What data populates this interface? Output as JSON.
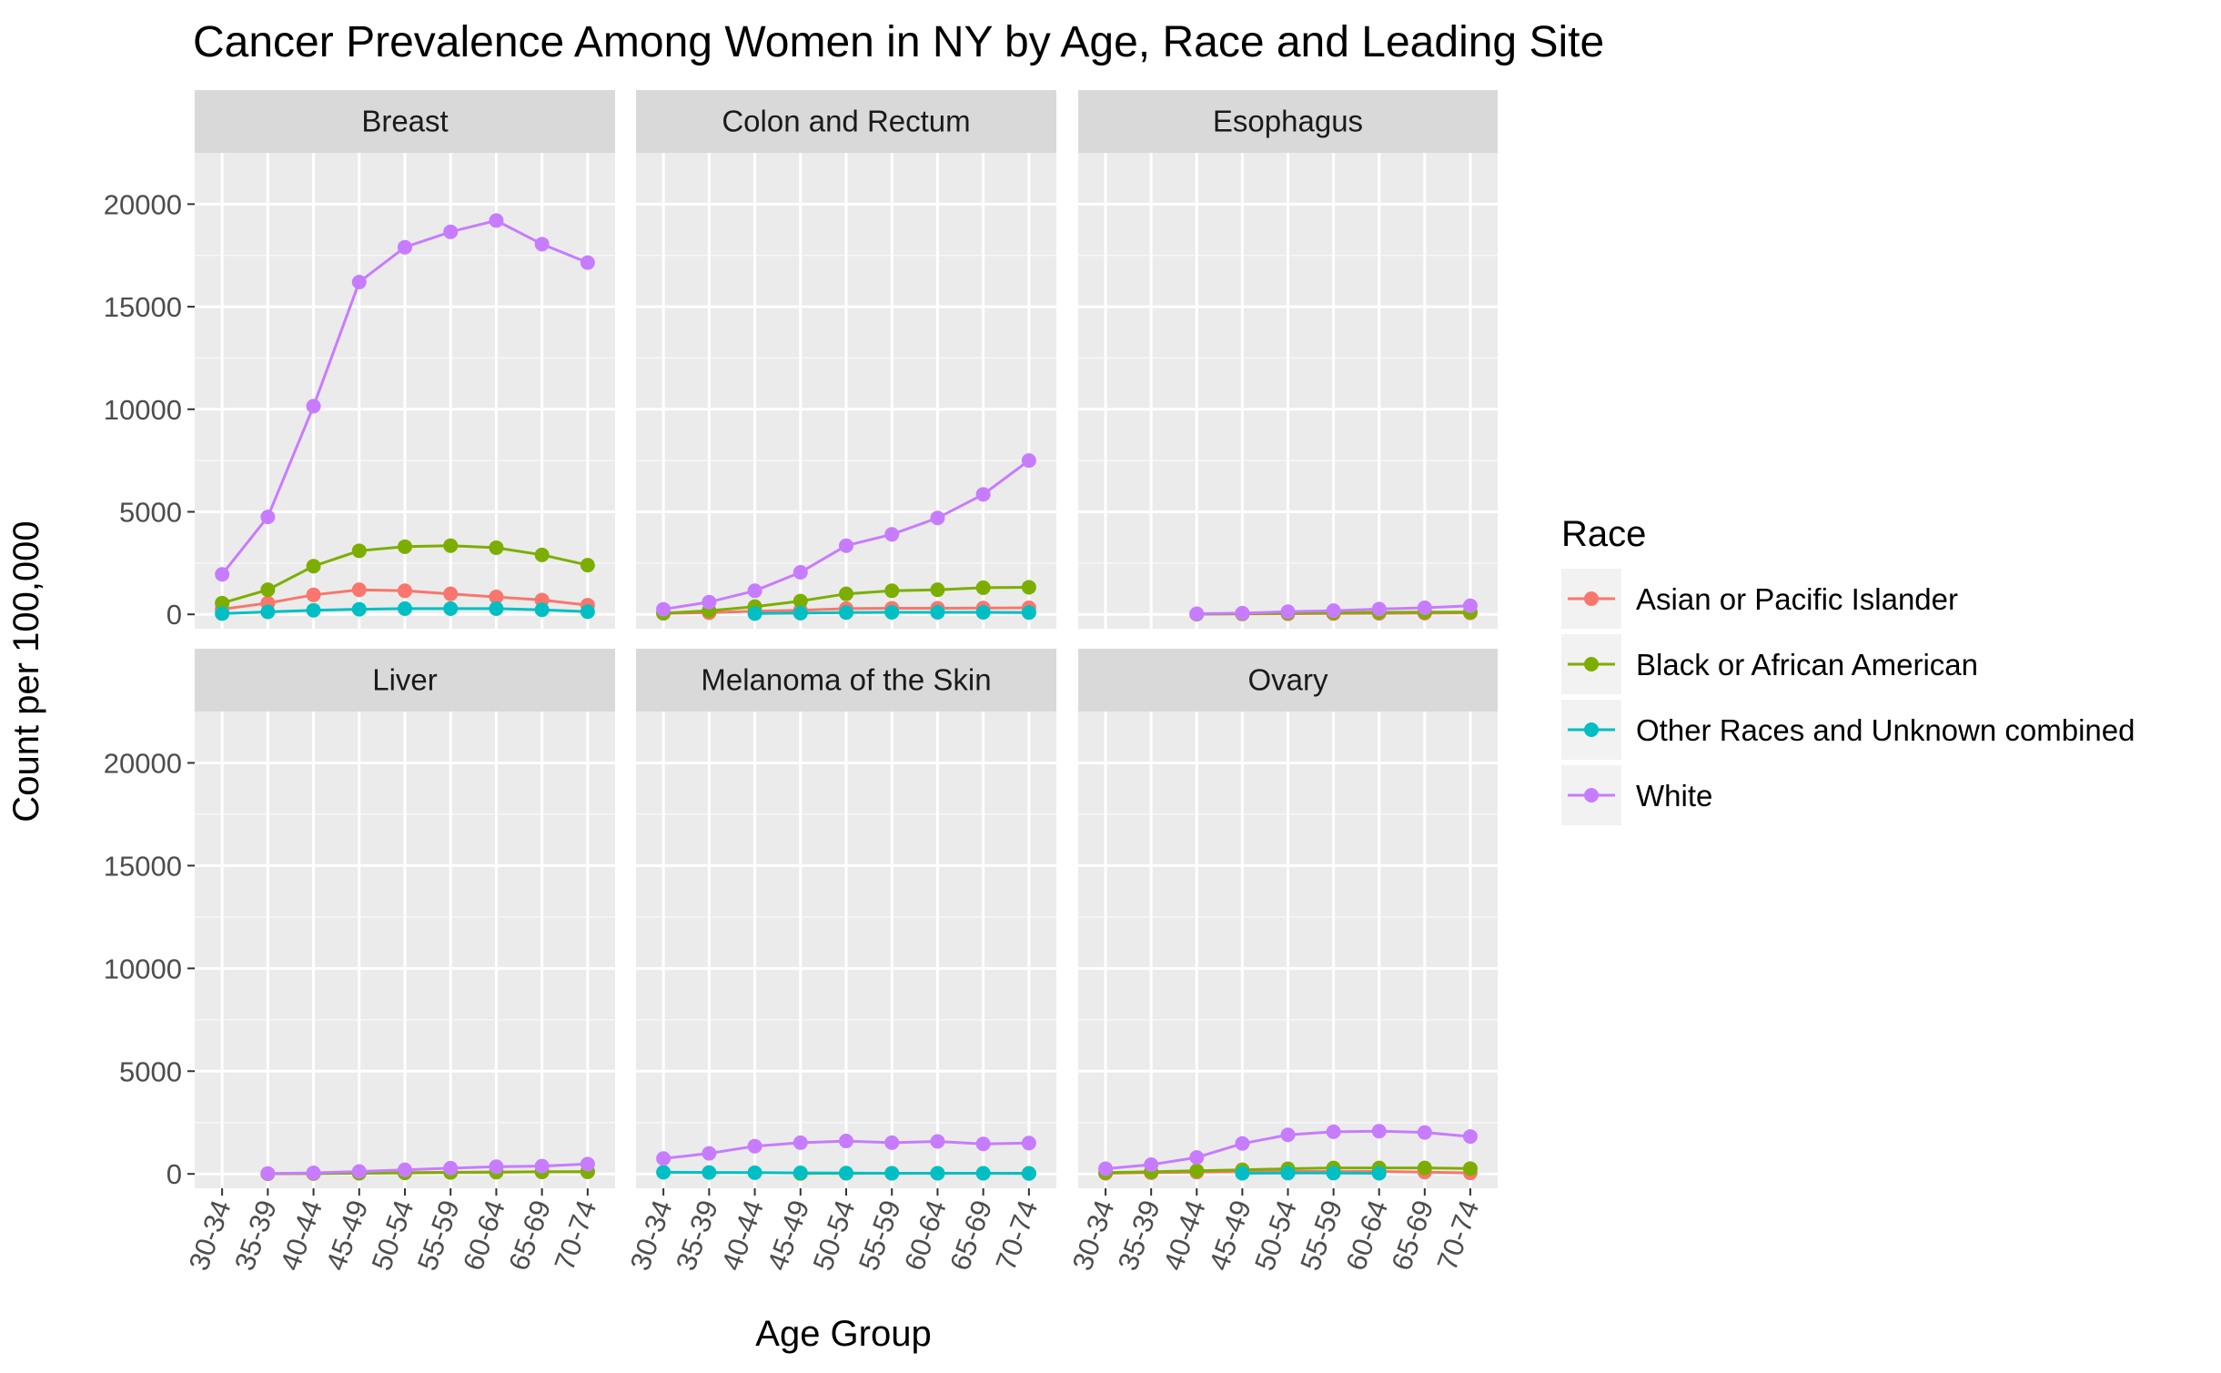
{
  "chart_data": {
    "type": "line",
    "title": "Cancer Prevalence Among Women in NY by Age, Race and Leading Site",
    "xlabel": "Age Group",
    "ylabel": "Count per 100,000",
    "categories": [
      "30-34",
      "35-39",
      "40-44",
      "45-49",
      "50-54",
      "55-59",
      "60-64",
      "65-69",
      "70-74"
    ],
    "yticks": [
      0,
      5000,
      10000,
      15000,
      20000
    ],
    "ylim": [
      -700,
      22500
    ],
    "grid": true,
    "legend": {
      "title": "Race",
      "position": "right",
      "entries": [
        "Asian or Pacific Islander",
        "Black or African American",
        "Other Races and Unknown combined",
        "White"
      ]
    },
    "colors": {
      "Asian or Pacific Islander": "#F8766D",
      "Black or African American": "#7CAE00",
      "Other Races and Unknown combined": "#00BFC4",
      "White": "#C77CFF"
    },
    "panels": [
      {
        "site": "Breast",
        "series": [
          {
            "name": "Asian or Pacific Islander",
            "values": [
              250,
              550,
              950,
              1200,
              1150,
              1000,
              850,
              700,
              450
            ]
          },
          {
            "name": "Black or African American",
            "values": [
              550,
              1200,
              2350,
              3100,
              3300,
              3350,
              3250,
              2900,
              2400
            ]
          },
          {
            "name": "Other Races and Unknown combined",
            "values": [
              40,
              120,
              200,
              250,
              280,
              280,
              280,
              220,
              130
            ]
          },
          {
            "name": "White",
            "values": [
              1950,
              4750,
              10150,
              16200,
              17900,
              18650,
              19200,
              18050,
              17150
            ]
          }
        ]
      },
      {
        "site": "Colon and Rectum",
        "series": [
          {
            "name": "Asian or Pacific Islander",
            "values": [
              50,
              80,
              150,
              200,
              280,
              300,
              300,
              310,
              320
            ]
          },
          {
            "name": "Black or African American",
            "values": [
              60,
              180,
              380,
              650,
              1000,
              1150,
              1200,
              1300,
              1320
            ]
          },
          {
            "name": "Other Races and Unknown combined",
            "values": [
              null,
              null,
              40,
              60,
              90,
              100,
              100,
              100,
              90
            ]
          },
          {
            "name": "White",
            "values": [
              250,
              600,
              1150,
              2050,
              3350,
              3900,
              4700,
              5850,
              7500
            ]
          }
        ]
      },
      {
        "site": "Esophagus",
        "series": [
          {
            "name": "Asian or Pacific Islander",
            "values": [
              null,
              null,
              10,
              20,
              30,
              40,
              50,
              60,
              70
            ]
          },
          {
            "name": "Black or African American",
            "values": [
              null,
              null,
              10,
              30,
              60,
              80,
              100,
              110,
              110
            ]
          },
          {
            "name": "Other Races and Unknown combined",
            "values": [
              null,
              null,
              null,
              null,
              null,
              null,
              null,
              null,
              null
            ]
          },
          {
            "name": "White",
            "values": [
              null,
              null,
              30,
              60,
              130,
              180,
              260,
              320,
              420
            ]
          }
        ]
      },
      {
        "site": "Liver",
        "series": [
          {
            "name": "Asian or Pacific Islander",
            "values": [
              null,
              10,
              20,
              40,
              60,
              80,
              90,
              100,
              100
            ]
          },
          {
            "name": "Black or African American",
            "values": [
              null,
              10,
              20,
              30,
              50,
              70,
              90,
              100,
              110
            ]
          },
          {
            "name": "Other Races and Unknown combined",
            "values": [
              null,
              null,
              null,
              null,
              null,
              null,
              null,
              null,
              null
            ]
          },
          {
            "name": "White",
            "values": [
              null,
              20,
              50,
              120,
              200,
              280,
              350,
              380,
              480
            ]
          }
        ]
      },
      {
        "site": "Melanoma of the Skin",
        "series": [
          {
            "name": "Asian or Pacific Islander",
            "values": [
              null,
              null,
              null,
              null,
              null,
              null,
              null,
              null,
              null
            ]
          },
          {
            "name": "Black or African American",
            "values": [
              null,
              null,
              null,
              20,
              30,
              30,
              30,
              30,
              30
            ]
          },
          {
            "name": "Other Races and Unknown combined",
            "values": [
              80,
              70,
              60,
              50,
              40,
              30,
              30,
              30,
              20
            ]
          },
          {
            "name": "White",
            "values": [
              750,
              1000,
              1350,
              1520,
              1600,
              1520,
              1580,
              1460,
              1500
            ]
          }
        ]
      },
      {
        "site": "Ovary",
        "series": [
          {
            "name": "Asian or Pacific Islander",
            "values": [
              30,
              60,
              90,
              110,
              120,
              120,
              120,
              90,
              50
            ]
          },
          {
            "name": "Black or African American",
            "values": [
              60,
              100,
              150,
              200,
              250,
              290,
              290,
              290,
              260
            ]
          },
          {
            "name": "Other Races and Unknown combined",
            "values": [
              null,
              null,
              null,
              30,
              40,
              40,
              30,
              null,
              null
            ]
          },
          {
            "name": "White",
            "values": [
              250,
              450,
              800,
              1480,
              1900,
              2050,
              2080,
              2020,
              1820
            ]
          }
        ]
      }
    ]
  }
}
